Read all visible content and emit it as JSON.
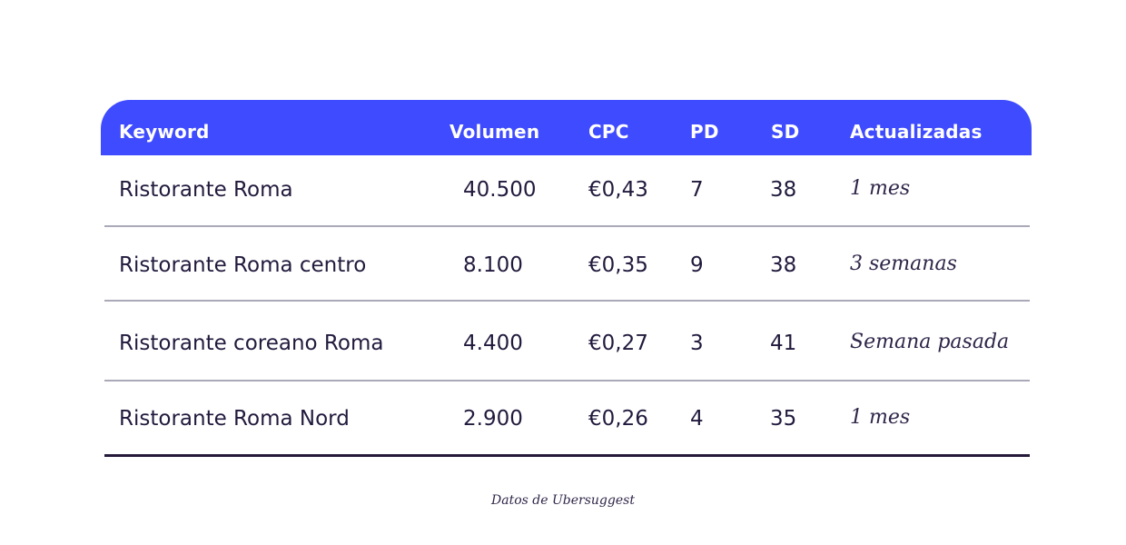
{
  "chart_data": {
    "type": "table",
    "columns": [
      "Keyword",
      "Volumen",
      "CPC",
      "PD",
      "SD",
      "Actualizadas"
    ],
    "rows": [
      [
        "Ristorante Roma",
        "40.500",
        "€0,43",
        "7",
        "38",
        "1 mes"
      ],
      [
        "Ristorante Roma centro",
        "8.100",
        "€0,35",
        "9",
        "38",
        "3 semanas"
      ],
      [
        "Ristorante coreano Roma",
        "4.400",
        "€0,27",
        "3",
        "41",
        "Semana pasada"
      ],
      [
        "Ristorante Roma Nord",
        "2.900",
        "€0,26",
        "4",
        "35",
        "1 mes"
      ]
    ]
  },
  "colors": {
    "header_bg": "#3f4bff",
    "header_text": "#ffffff",
    "text": "#221a3d",
    "row_divider": "#aaa9b8",
    "last_row_divider": "#261a3a"
  },
  "caption": "Datos de Ubersuggest"
}
